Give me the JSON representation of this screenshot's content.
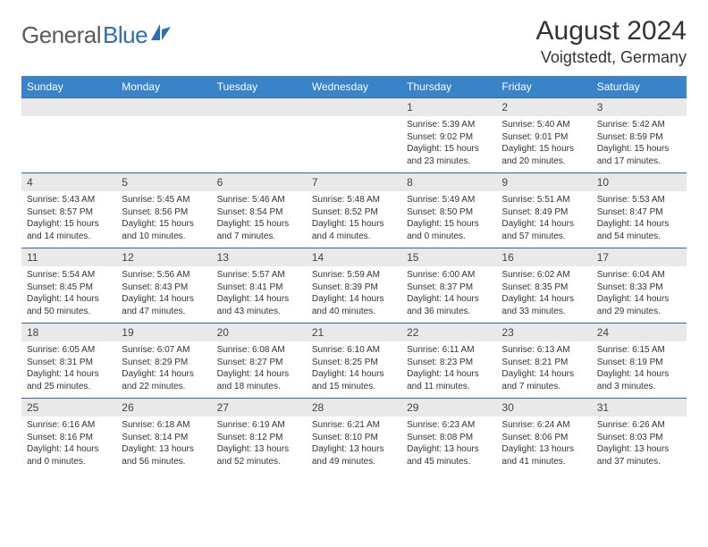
{
  "logo": {
    "text1": "General",
    "text2": "Blue"
  },
  "title": "August 2024",
  "location": "Voigtstedt, Germany",
  "weekday_header_bg": "#3983c9",
  "daynum_bg": "#e9e9e9",
  "border_color": "#2f6aa8",
  "text_color": "#333333",
  "weekdays": [
    "Sunday",
    "Monday",
    "Tuesday",
    "Wednesday",
    "Thursday",
    "Friday",
    "Saturday"
  ],
  "weeks": [
    [
      null,
      null,
      null,
      null,
      {
        "n": "1",
        "sunrise": "Sunrise: 5:39 AM",
        "sunset": "Sunset: 9:02 PM",
        "day1": "Daylight: 15 hours",
        "day2": "and 23 minutes."
      },
      {
        "n": "2",
        "sunrise": "Sunrise: 5:40 AM",
        "sunset": "Sunset: 9:01 PM",
        "day1": "Daylight: 15 hours",
        "day2": "and 20 minutes."
      },
      {
        "n": "3",
        "sunrise": "Sunrise: 5:42 AM",
        "sunset": "Sunset: 8:59 PM",
        "day1": "Daylight: 15 hours",
        "day2": "and 17 minutes."
      }
    ],
    [
      {
        "n": "4",
        "sunrise": "Sunrise: 5:43 AM",
        "sunset": "Sunset: 8:57 PM",
        "day1": "Daylight: 15 hours",
        "day2": "and 14 minutes."
      },
      {
        "n": "5",
        "sunrise": "Sunrise: 5:45 AM",
        "sunset": "Sunset: 8:56 PM",
        "day1": "Daylight: 15 hours",
        "day2": "and 10 minutes."
      },
      {
        "n": "6",
        "sunrise": "Sunrise: 5:46 AM",
        "sunset": "Sunset: 8:54 PM",
        "day1": "Daylight: 15 hours",
        "day2": "and 7 minutes."
      },
      {
        "n": "7",
        "sunrise": "Sunrise: 5:48 AM",
        "sunset": "Sunset: 8:52 PM",
        "day1": "Daylight: 15 hours",
        "day2": "and 4 minutes."
      },
      {
        "n": "8",
        "sunrise": "Sunrise: 5:49 AM",
        "sunset": "Sunset: 8:50 PM",
        "day1": "Daylight: 15 hours",
        "day2": "and 0 minutes."
      },
      {
        "n": "9",
        "sunrise": "Sunrise: 5:51 AM",
        "sunset": "Sunset: 8:49 PM",
        "day1": "Daylight: 14 hours",
        "day2": "and 57 minutes."
      },
      {
        "n": "10",
        "sunrise": "Sunrise: 5:53 AM",
        "sunset": "Sunset: 8:47 PM",
        "day1": "Daylight: 14 hours",
        "day2": "and 54 minutes."
      }
    ],
    [
      {
        "n": "11",
        "sunrise": "Sunrise: 5:54 AM",
        "sunset": "Sunset: 8:45 PM",
        "day1": "Daylight: 14 hours",
        "day2": "and 50 minutes."
      },
      {
        "n": "12",
        "sunrise": "Sunrise: 5:56 AM",
        "sunset": "Sunset: 8:43 PM",
        "day1": "Daylight: 14 hours",
        "day2": "and 47 minutes."
      },
      {
        "n": "13",
        "sunrise": "Sunrise: 5:57 AM",
        "sunset": "Sunset: 8:41 PM",
        "day1": "Daylight: 14 hours",
        "day2": "and 43 minutes."
      },
      {
        "n": "14",
        "sunrise": "Sunrise: 5:59 AM",
        "sunset": "Sunset: 8:39 PM",
        "day1": "Daylight: 14 hours",
        "day2": "and 40 minutes."
      },
      {
        "n": "15",
        "sunrise": "Sunrise: 6:00 AM",
        "sunset": "Sunset: 8:37 PM",
        "day1": "Daylight: 14 hours",
        "day2": "and 36 minutes."
      },
      {
        "n": "16",
        "sunrise": "Sunrise: 6:02 AM",
        "sunset": "Sunset: 8:35 PM",
        "day1": "Daylight: 14 hours",
        "day2": "and 33 minutes."
      },
      {
        "n": "17",
        "sunrise": "Sunrise: 6:04 AM",
        "sunset": "Sunset: 8:33 PM",
        "day1": "Daylight: 14 hours",
        "day2": "and 29 minutes."
      }
    ],
    [
      {
        "n": "18",
        "sunrise": "Sunrise: 6:05 AM",
        "sunset": "Sunset: 8:31 PM",
        "day1": "Daylight: 14 hours",
        "day2": "and 25 minutes."
      },
      {
        "n": "19",
        "sunrise": "Sunrise: 6:07 AM",
        "sunset": "Sunset: 8:29 PM",
        "day1": "Daylight: 14 hours",
        "day2": "and 22 minutes."
      },
      {
        "n": "20",
        "sunrise": "Sunrise: 6:08 AM",
        "sunset": "Sunset: 8:27 PM",
        "day1": "Daylight: 14 hours",
        "day2": "and 18 minutes."
      },
      {
        "n": "21",
        "sunrise": "Sunrise: 6:10 AM",
        "sunset": "Sunset: 8:25 PM",
        "day1": "Daylight: 14 hours",
        "day2": "and 15 minutes."
      },
      {
        "n": "22",
        "sunrise": "Sunrise: 6:11 AM",
        "sunset": "Sunset: 8:23 PM",
        "day1": "Daylight: 14 hours",
        "day2": "and 11 minutes."
      },
      {
        "n": "23",
        "sunrise": "Sunrise: 6:13 AM",
        "sunset": "Sunset: 8:21 PM",
        "day1": "Daylight: 14 hours",
        "day2": "and 7 minutes."
      },
      {
        "n": "24",
        "sunrise": "Sunrise: 6:15 AM",
        "sunset": "Sunset: 8:19 PM",
        "day1": "Daylight: 14 hours",
        "day2": "and 3 minutes."
      }
    ],
    [
      {
        "n": "25",
        "sunrise": "Sunrise: 6:16 AM",
        "sunset": "Sunset: 8:16 PM",
        "day1": "Daylight: 14 hours",
        "day2": "and 0 minutes."
      },
      {
        "n": "26",
        "sunrise": "Sunrise: 6:18 AM",
        "sunset": "Sunset: 8:14 PM",
        "day1": "Daylight: 13 hours",
        "day2": "and 56 minutes."
      },
      {
        "n": "27",
        "sunrise": "Sunrise: 6:19 AM",
        "sunset": "Sunset: 8:12 PM",
        "day1": "Daylight: 13 hours",
        "day2": "and 52 minutes."
      },
      {
        "n": "28",
        "sunrise": "Sunrise: 6:21 AM",
        "sunset": "Sunset: 8:10 PM",
        "day1": "Daylight: 13 hours",
        "day2": "and 49 minutes."
      },
      {
        "n": "29",
        "sunrise": "Sunrise: 6:23 AM",
        "sunset": "Sunset: 8:08 PM",
        "day1": "Daylight: 13 hours",
        "day2": "and 45 minutes."
      },
      {
        "n": "30",
        "sunrise": "Sunrise: 6:24 AM",
        "sunset": "Sunset: 8:06 PM",
        "day1": "Daylight: 13 hours",
        "day2": "and 41 minutes."
      },
      {
        "n": "31",
        "sunrise": "Sunrise: 6:26 AM",
        "sunset": "Sunset: 8:03 PM",
        "day1": "Daylight: 13 hours",
        "day2": "and 37 minutes."
      }
    ]
  ]
}
